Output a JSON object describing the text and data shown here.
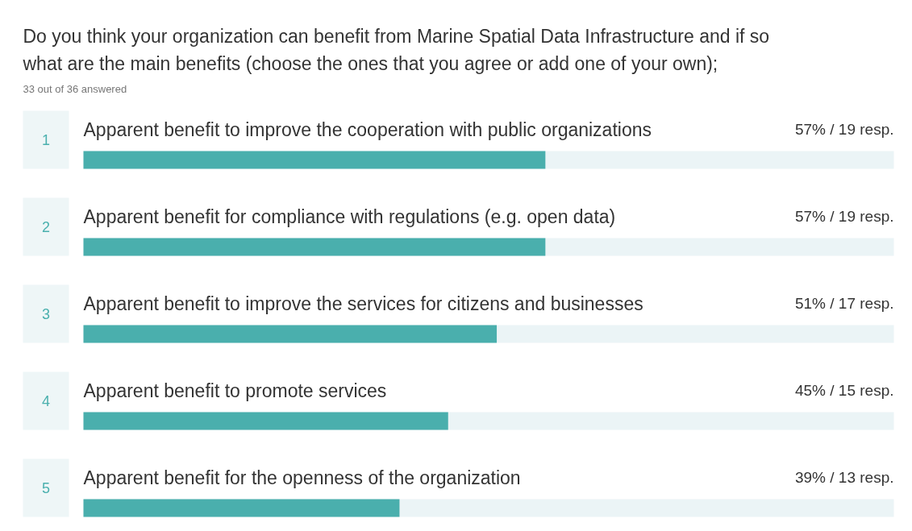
{
  "chart_data": {
    "type": "bar",
    "orientation": "horizontal",
    "title": "Do you think your organization can benefit from Marine Spatial Data Infrastructure and if so what are the main benefits (choose the ones that you agree or add one of your own);",
    "subtitle": "33 out of 36 answered",
    "categories": [
      "Apparent benefit to improve the cooperation with public organizations",
      "Apparent benefit for compliance with regulations (e.g. open data)",
      "Apparent benefit to improve the services for citizens and businesses",
      "Apparent benefit to promote services",
      "Apparent benefit for the openness of the organization"
    ],
    "values": [
      57,
      57,
      51,
      45,
      39
    ],
    "value_labels": [
      "57% / 19 resp.",
      "57% / 19 resp.",
      "51% / 17 resp.",
      "45% / 15 resp.",
      "39% / 13 resp."
    ],
    "annotations": [
      "1",
      "2",
      "3",
      "4",
      "5"
    ],
    "color": "#4aafad",
    "xlim": [
      0,
      100
    ]
  }
}
